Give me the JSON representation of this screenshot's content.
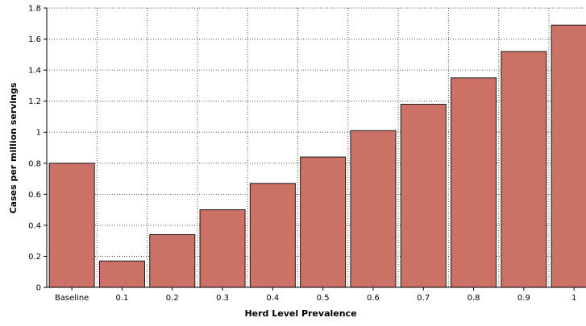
{
  "chart_data": {
    "type": "bar",
    "title": "",
    "xlabel": "Herd Level Prevalence",
    "ylabel": "Cases per million servings",
    "categories": [
      "Baseline",
      "0.1",
      "0.2",
      "0.3",
      "0.4",
      "0.5",
      "0.6",
      "0.7",
      "0.8",
      "0.9",
      "1"
    ],
    "values": [
      0.8,
      0.17,
      0.34,
      0.5,
      0.67,
      0.84,
      1.01,
      1.18,
      1.35,
      1.52,
      1.69
    ],
    "ylim": [
      0,
      1.8
    ],
    "yticks": [
      0,
      0.2,
      0.4,
      0.6,
      0.8,
      1,
      1.2,
      1.4,
      1.6,
      1.8
    ],
    "ytick_labels": [
      "0",
      "0.2",
      "0.4",
      "0.6",
      "0.8",
      "1",
      "1.2",
      "1.4",
      "1.6",
      "1.8"
    ],
    "grid": true,
    "legend": "none",
    "colors": {
      "bar_fill": "#cc7166",
      "bar_stroke": "#1a1a1a",
      "grid": "#555555",
      "axis": "#000000"
    }
  }
}
